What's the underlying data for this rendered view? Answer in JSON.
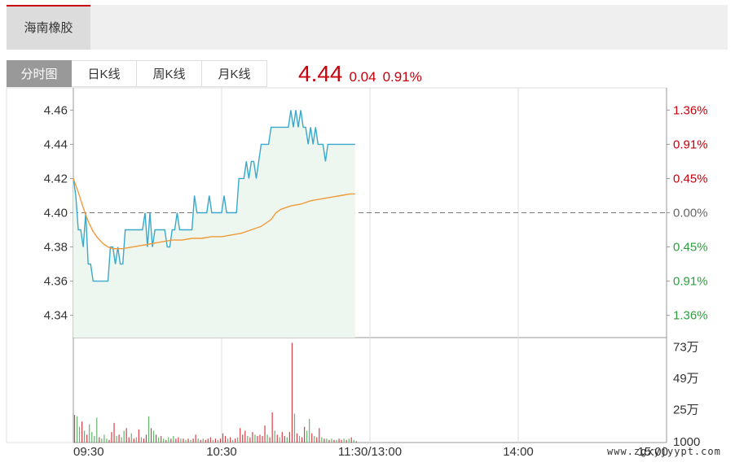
{
  "stock_tab": {
    "label": "海南橡胶"
  },
  "tabs": [
    {
      "label": "分时图",
      "active": true
    },
    {
      "label": "日K线",
      "active": false
    },
    {
      "label": "周K线",
      "active": false
    },
    {
      "label": "月K线",
      "active": false
    }
  ],
  "quote": {
    "price": "4.44",
    "change": "0.04",
    "change_pct": "0.91%"
  },
  "watermark": "www.zgxyjyypt.com",
  "colors": {
    "up": "#c7000b",
    "down": "#2e9d3e",
    "price_line": "#3aa8cc",
    "avg_line": "#f09a3a",
    "fill": "#eef7ef",
    "grid": "#dddddd"
  },
  "chart_data": {
    "type": "line",
    "base_price": 4.4,
    "ylim": [
      4.327,
      4.473
    ],
    "y_ticks": [
      "4.46",
      "4.44",
      "4.42",
      "4.40",
      "4.38",
      "4.36",
      "4.34"
    ],
    "y_tick_values": [
      4.46,
      4.44,
      4.42,
      4.4,
      4.38,
      4.36,
      4.34
    ],
    "pct_ticks": [
      {
        "label": "1.36%",
        "value": 4.46,
        "dir": "up"
      },
      {
        "label": "0.91%",
        "value": 4.44,
        "dir": "up"
      },
      {
        "label": "0.45%",
        "value": 4.42,
        "dir": "up"
      },
      {
        "label": "0.00%",
        "value": 4.4,
        "dir": "flat"
      },
      {
        "label": "0.45%",
        "value": 4.38,
        "dir": "down"
      },
      {
        "label": "0.91%",
        "value": 4.36,
        "dir": "down"
      },
      {
        "label": "1.36%",
        "value": 4.34,
        "dir": "down"
      }
    ],
    "x_labels": [
      {
        "label": "09:30",
        "minute": 0
      },
      {
        "label": "10:30",
        "minute": 60
      },
      {
        "label": "11:30/13:00",
        "minute": 120
      },
      {
        "label": "14:00",
        "minute": 180
      },
      {
        "label": "15:00",
        "minute": 240
      }
    ],
    "total_minutes": 240,
    "price_points": [
      [
        0,
        4.42
      ],
      [
        1,
        4.41
      ],
      [
        2,
        4.39
      ],
      [
        3,
        4.39
      ],
      [
        4,
        4.38
      ],
      [
        5,
        4.4
      ],
      [
        6,
        4.37
      ],
      [
        7,
        4.37
      ],
      [
        8,
        4.36
      ],
      [
        9,
        4.36
      ],
      [
        10,
        4.36
      ],
      [
        11,
        4.36
      ],
      [
        12,
        4.36
      ],
      [
        13,
        4.36
      ],
      [
        14,
        4.36
      ],
      [
        15,
        4.38
      ],
      [
        16,
        4.38
      ],
      [
        17,
        4.37
      ],
      [
        18,
        4.38
      ],
      [
        19,
        4.37
      ],
      [
        20,
        4.37
      ],
      [
        21,
        4.39
      ],
      [
        22,
        4.39
      ],
      [
        23,
        4.39
      ],
      [
        24,
        4.39
      ],
      [
        25,
        4.39
      ],
      [
        26,
        4.39
      ],
      [
        27,
        4.39
      ],
      [
        28,
        4.39
      ],
      [
        29,
        4.4
      ],
      [
        30,
        4.38
      ],
      [
        31,
        4.4
      ],
      [
        32,
        4.38
      ],
      [
        33,
        4.39
      ],
      [
        34,
        4.39
      ],
      [
        35,
        4.39
      ],
      [
        36,
        4.39
      ],
      [
        37,
        4.39
      ],
      [
        38,
        4.38
      ],
      [
        39,
        4.38
      ],
      [
        40,
        4.39
      ],
      [
        41,
        4.39
      ],
      [
        42,
        4.4
      ],
      [
        43,
        4.39
      ],
      [
        44,
        4.39
      ],
      [
        45,
        4.39
      ],
      [
        46,
        4.39
      ],
      [
        47,
        4.39
      ],
      [
        48,
        4.39
      ],
      [
        49,
        4.41
      ],
      [
        50,
        4.4
      ],
      [
        51,
        4.4
      ],
      [
        52,
        4.4
      ],
      [
        53,
        4.4
      ],
      [
        54,
        4.4
      ],
      [
        55,
        4.41
      ],
      [
        56,
        4.4
      ],
      [
        57,
        4.4
      ],
      [
        58,
        4.4
      ],
      [
        59,
        4.4
      ],
      [
        60,
        4.4
      ],
      [
        61,
        4.41
      ],
      [
        62,
        4.4
      ],
      [
        63,
        4.4
      ],
      [
        64,
        4.4
      ],
      [
        65,
        4.4
      ],
      [
        66,
        4.4
      ],
      [
        67,
        4.42
      ],
      [
        68,
        4.42
      ],
      [
        69,
        4.42
      ],
      [
        70,
        4.43
      ],
      [
        71,
        4.42
      ],
      [
        72,
        4.43
      ],
      [
        73,
        4.43
      ],
      [
        74,
        4.42
      ],
      [
        75,
        4.43
      ],
      [
        76,
        4.44
      ],
      [
        77,
        4.44
      ],
      [
        78,
        4.44
      ],
      [
        79,
        4.44
      ],
      [
        80,
        4.45
      ],
      [
        81,
        4.45
      ],
      [
        82,
        4.45
      ],
      [
        83,
        4.45
      ],
      [
        84,
        4.45
      ],
      [
        85,
        4.45
      ],
      [
        86,
        4.45
      ],
      [
        87,
        4.45
      ],
      [
        88,
        4.46
      ],
      [
        89,
        4.45
      ],
      [
        90,
        4.46
      ],
      [
        91,
        4.45
      ],
      [
        92,
        4.46
      ],
      [
        93,
        4.45
      ],
      [
        94,
        4.45
      ],
      [
        95,
        4.44
      ],
      [
        96,
        4.45
      ],
      [
        97,
        4.44
      ],
      [
        98,
        4.45
      ],
      [
        99,
        4.44
      ],
      [
        100,
        4.44
      ],
      [
        101,
        4.44
      ],
      [
        102,
        4.43
      ],
      [
        103,
        4.44
      ],
      [
        104,
        4.44
      ],
      [
        105,
        4.44
      ],
      [
        106,
        4.44
      ],
      [
        107,
        4.44
      ],
      [
        108,
        4.44
      ],
      [
        109,
        4.44
      ],
      [
        110,
        4.44
      ],
      [
        111,
        4.44
      ],
      [
        112,
        4.44
      ],
      [
        113,
        4.44
      ],
      [
        114,
        4.44
      ]
    ],
    "avg_points": [
      [
        0,
        4.42
      ],
      [
        2,
        4.412
      ],
      [
        4,
        4.403
      ],
      [
        6,
        4.395
      ],
      [
        8,
        4.389
      ],
      [
        10,
        4.385
      ],
      [
        12,
        4.382
      ],
      [
        14,
        4.38
      ],
      [
        16,
        4.379
      ],
      [
        20,
        4.379
      ],
      [
        24,
        4.38
      ],
      [
        28,
        4.381
      ],
      [
        32,
        4.382
      ],
      [
        36,
        4.383
      ],
      [
        40,
        4.384
      ],
      [
        44,
        4.384
      ],
      [
        48,
        4.385
      ],
      [
        52,
        4.385
      ],
      [
        56,
        4.386
      ],
      [
        60,
        4.386
      ],
      [
        64,
        4.387
      ],
      [
        68,
        4.388
      ],
      [
        72,
        4.39
      ],
      [
        76,
        4.392
      ],
      [
        80,
        4.396
      ],
      [
        82,
        4.4
      ],
      [
        84,
        4.402
      ],
      [
        88,
        4.404
      ],
      [
        92,
        4.405
      ],
      [
        96,
        4.407
      ],
      [
        100,
        4.408
      ],
      [
        104,
        4.409
      ],
      [
        108,
        4.41
      ],
      [
        112,
        4.411
      ],
      [
        114,
        4.411
      ]
    ],
    "volume_axis": {
      "max": 800000,
      "ticks": [
        {
          "label": "73万",
          "value": 730000
        },
        {
          "label": "49万",
          "value": 490000
        },
        {
          "label": "25万",
          "value": 250000
        },
        {
          "label": "1000",
          "value": 1000
        }
      ]
    },
    "volume": [
      [
        0,
        210000,
        "up"
      ],
      [
        1,
        200000,
        "down"
      ],
      [
        2,
        120000,
        "down"
      ],
      [
        3,
        160000,
        "up"
      ],
      [
        4,
        90000,
        "down"
      ],
      [
        5,
        60000,
        "up"
      ],
      [
        6,
        140000,
        "down"
      ],
      [
        7,
        80000,
        "down"
      ],
      [
        8,
        50000,
        "down"
      ],
      [
        9,
        190000,
        "down"
      ],
      [
        10,
        40000,
        "up"
      ],
      [
        11,
        30000,
        "down"
      ],
      [
        12,
        60000,
        "down"
      ],
      [
        13,
        30000,
        "down"
      ],
      [
        14,
        20000,
        "up"
      ],
      [
        15,
        80000,
        "up"
      ],
      [
        16,
        150000,
        "up"
      ],
      [
        17,
        50000,
        "down"
      ],
      [
        18,
        60000,
        "up"
      ],
      [
        19,
        40000,
        "down"
      ],
      [
        20,
        90000,
        "down"
      ],
      [
        21,
        110000,
        "up"
      ],
      [
        22,
        40000,
        "up"
      ],
      [
        23,
        70000,
        "down"
      ],
      [
        24,
        30000,
        "up"
      ],
      [
        25,
        40000,
        "down"
      ],
      [
        26,
        100000,
        "up"
      ],
      [
        27,
        40000,
        "down"
      ],
      [
        28,
        30000,
        "up"
      ],
      [
        29,
        60000,
        "up"
      ],
      [
        30,
        200000,
        "down"
      ],
      [
        31,
        110000,
        "up"
      ],
      [
        32,
        90000,
        "down"
      ],
      [
        33,
        60000,
        "up"
      ],
      [
        34,
        40000,
        "down"
      ],
      [
        35,
        50000,
        "up"
      ],
      [
        36,
        30000,
        "down"
      ],
      [
        37,
        20000,
        "up"
      ],
      [
        38,
        40000,
        "down"
      ],
      [
        39,
        30000,
        "up"
      ],
      [
        40,
        50000,
        "down"
      ],
      [
        41,
        30000,
        "up"
      ],
      [
        42,
        40000,
        "up"
      ],
      [
        43,
        30000,
        "down"
      ],
      [
        44,
        30000,
        "up"
      ],
      [
        45,
        20000,
        "down"
      ],
      [
        46,
        30000,
        "up"
      ],
      [
        47,
        20000,
        "down"
      ],
      [
        48,
        30000,
        "up"
      ],
      [
        49,
        60000,
        "up"
      ],
      [
        50,
        30000,
        "down"
      ],
      [
        51,
        20000,
        "up"
      ],
      [
        52,
        30000,
        "down"
      ],
      [
        53,
        20000,
        "up"
      ],
      [
        54,
        30000,
        "up"
      ],
      [
        55,
        40000,
        "up"
      ],
      [
        56,
        20000,
        "down"
      ],
      [
        57,
        30000,
        "up"
      ],
      [
        58,
        20000,
        "down"
      ],
      [
        59,
        30000,
        "up"
      ],
      [
        60,
        70000,
        "up"
      ],
      [
        61,
        50000,
        "up"
      ],
      [
        62,
        30000,
        "down"
      ],
      [
        63,
        40000,
        "up"
      ],
      [
        64,
        20000,
        "down"
      ],
      [
        65,
        30000,
        "up"
      ],
      [
        66,
        40000,
        "down"
      ],
      [
        67,
        110000,
        "up"
      ],
      [
        68,
        60000,
        "up"
      ],
      [
        69,
        90000,
        "up"
      ],
      [
        70,
        50000,
        "down"
      ],
      [
        71,
        40000,
        "up"
      ],
      [
        72,
        80000,
        "up"
      ],
      [
        73,
        60000,
        "down"
      ],
      [
        74,
        50000,
        "up"
      ],
      [
        75,
        60000,
        "up"
      ],
      [
        76,
        50000,
        "up"
      ],
      [
        77,
        130000,
        "up"
      ],
      [
        78,
        60000,
        "down"
      ],
      [
        79,
        40000,
        "up"
      ],
      [
        80,
        230000,
        "up"
      ],
      [
        81,
        90000,
        "down"
      ],
      [
        82,
        60000,
        "up"
      ],
      [
        83,
        40000,
        "down"
      ],
      [
        84,
        80000,
        "up"
      ],
      [
        85,
        50000,
        "up"
      ],
      [
        86,
        40000,
        "down"
      ],
      [
        87,
        80000,
        "up"
      ],
      [
        88,
        760000,
        "up"
      ],
      [
        89,
        220000,
        "down"
      ],
      [
        90,
        70000,
        "up"
      ],
      [
        91,
        50000,
        "down"
      ],
      [
        92,
        40000,
        "up"
      ],
      [
        93,
        120000,
        "up"
      ],
      [
        94,
        90000,
        "down"
      ],
      [
        95,
        180000,
        "down"
      ],
      [
        96,
        70000,
        "up"
      ],
      [
        97,
        50000,
        "down"
      ],
      [
        98,
        40000,
        "up"
      ],
      [
        99,
        110000,
        "up"
      ],
      [
        100,
        40000,
        "down"
      ],
      [
        101,
        30000,
        "up"
      ],
      [
        102,
        30000,
        "down"
      ],
      [
        103,
        20000,
        "up"
      ],
      [
        104,
        30000,
        "down"
      ],
      [
        105,
        20000,
        "up"
      ],
      [
        106,
        20000,
        "down"
      ],
      [
        107,
        30000,
        "up"
      ],
      [
        108,
        20000,
        "up"
      ],
      [
        109,
        30000,
        "down"
      ],
      [
        110,
        20000,
        "up"
      ],
      [
        111,
        30000,
        "down"
      ],
      [
        112,
        40000,
        "up"
      ],
      [
        113,
        20000,
        "down"
      ],
      [
        114,
        10000,
        "up"
      ]
    ]
  }
}
